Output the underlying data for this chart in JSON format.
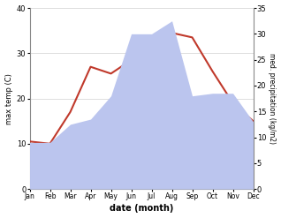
{
  "months": [
    "Jan",
    "Feb",
    "Mar",
    "Apr",
    "May",
    "Jun",
    "Jul",
    "Aug",
    "Sep",
    "Oct",
    "Nov",
    "Dec"
  ],
  "temperature": [
    10.5,
    10.0,
    17.0,
    27.0,
    25.5,
    28.5,
    32.0,
    34.5,
    33.5,
    26.0,
    19.0,
    15.0
  ],
  "precipitation": [
    9.0,
    9.0,
    12.5,
    13.5,
    18.0,
    30.0,
    30.0,
    32.5,
    18.0,
    18.5,
    18.5,
    13.0
  ],
  "temp_color": "#c0392b",
  "precip_color": "#bbc5ee",
  "temp_ylim": [
    0,
    40
  ],
  "precip_ylim": [
    0,
    35
  ],
  "temp_yticks": [
    0,
    10,
    20,
    30,
    40
  ],
  "precip_yticks": [
    0,
    5,
    10,
    15,
    20,
    25,
    30,
    35
  ],
  "xlabel": "date (month)",
  "ylabel_left": "max temp (C)",
  "ylabel_right": "med. precipitation (kg/m2)",
  "background_color": "#ffffff",
  "grid_color": "#d0d0d0",
  "spine_color": "#888888"
}
